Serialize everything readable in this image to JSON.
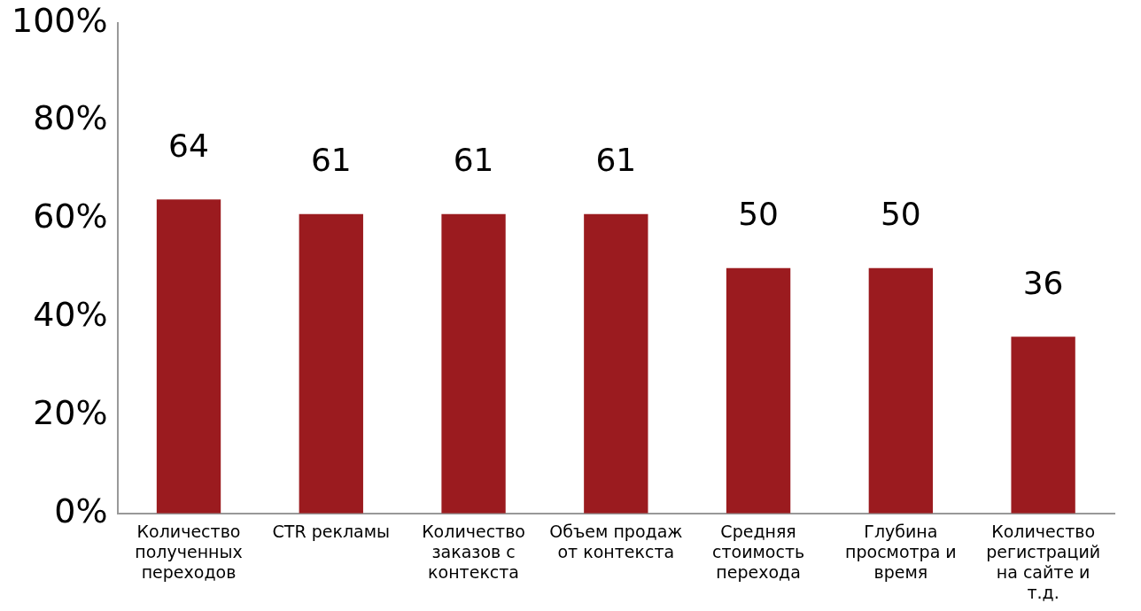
{
  "chart_data": {
    "type": "bar",
    "categories": [
      "Количество полученных переходов",
      "CTR рекламы",
      "Количество заказов с контекста",
      "Объем продаж от контекста",
      "Средняя стоимость перехода",
      "Глубина просмотра и время",
      "Количество регистраций на сайте и т.д."
    ],
    "values": [
      64,
      61,
      61,
      61,
      50,
      50,
      36
    ],
    "color": "#9b1b1f",
    "ylim": [
      0,
      100
    ],
    "yticks": [
      {
        "value": 0,
        "label": "0%"
      },
      {
        "value": 20,
        "label": "20%"
      },
      {
        "value": 40,
        "label": "40%"
      },
      {
        "value": 60,
        "label": "60%"
      },
      {
        "value": 80,
        "label": "80%"
      },
      {
        "value": 100,
        "label": "100%"
      }
    ],
    "data_labels": true,
    "grid": false,
    "legend": false
  }
}
